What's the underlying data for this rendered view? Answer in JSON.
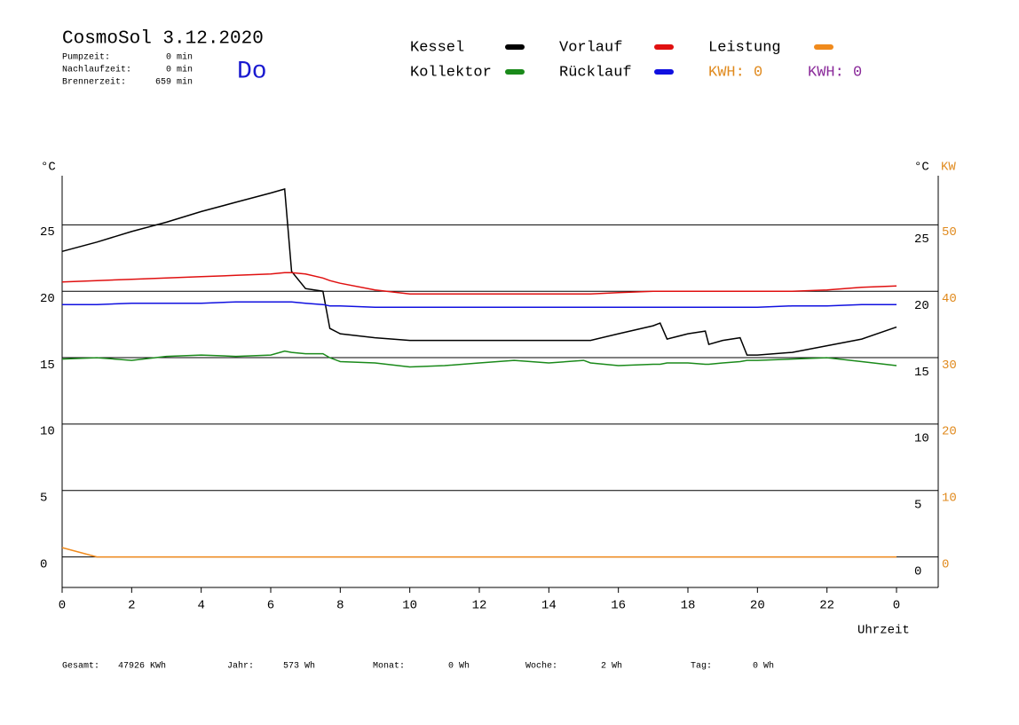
{
  "chart_data": {
    "type": "line",
    "title": "CosmoSol 3.12.2020",
    "day": "Do",
    "info": [
      {
        "label": "Pumpzeit:",
        "value": "0 min"
      },
      {
        "label": "Nachlaufzeit:",
        "value": "0 min"
      },
      {
        "label": "Brennerzeit:",
        "value": "659 min"
      }
    ],
    "y_unit": "°C",
    "y2_unit": "KW",
    "x_label": "Uhrzeit",
    "x": [
      0,
      1,
      2,
      3,
      4,
      5,
      6,
      6.4,
      6.6,
      7,
      7.5,
      7.7,
      8,
      9,
      10,
      11,
      12,
      13,
      14,
      15,
      15.2,
      16,
      17,
      17.2,
      17.4,
      18,
      18.5,
      18.6,
      19,
      19.5,
      19.7,
      20,
      21,
      22,
      23,
      24
    ],
    "xlim": [
      0,
      25.2
    ],
    "xticks": [
      0,
      2,
      4,
      6,
      8,
      10,
      12,
      14,
      16,
      18,
      20,
      22,
      {
        "value": 24,
        "label": "0"
      }
    ],
    "ylim": [
      -2.3,
      28.7
    ],
    "yticks": [
      0,
      5,
      10,
      15,
      20,
      25
    ],
    "y2lim": [
      -4.6,
      57.4
    ],
    "y2ticks": [
      0,
      10,
      20,
      30,
      40,
      50
    ],
    "grid": true,
    "series": [
      {
        "name": "Kessel",
        "color": "#000000",
        "values": [
          23.0,
          23.7,
          24.5,
          25.2,
          26.0,
          26.7,
          27.4,
          27.7,
          21.5,
          20.2,
          20.0,
          17.2,
          16.8,
          16.5,
          16.3,
          16.3,
          16.3,
          16.3,
          16.3,
          16.3,
          16.3,
          16.8,
          17.4,
          17.6,
          16.4,
          16.8,
          17.0,
          16.0,
          16.3,
          16.5,
          15.2,
          15.2,
          15.4,
          15.9,
          16.4,
          17.3
        ]
      },
      {
        "name": "Vorlauf",
        "color": "#e01010",
        "values": [
          20.7,
          20.8,
          20.9,
          21.0,
          21.1,
          21.2,
          21.3,
          21.4,
          21.4,
          21.3,
          21.0,
          20.8,
          20.6,
          20.1,
          19.8,
          19.8,
          19.8,
          19.8,
          19.8,
          19.8,
          19.8,
          19.9,
          20.0,
          20.0,
          20.0,
          20.0,
          20.0,
          20.0,
          20.0,
          20.0,
          20.0,
          20.0,
          20.0,
          20.1,
          20.3,
          20.4
        ]
      },
      {
        "name": "Leistung",
        "color": "#f08a1c",
        "axis": "y2",
        "values": [
          1.4,
          0,
          0,
          0,
          0,
          0,
          0,
          0,
          0,
          0,
          0,
          0,
          0,
          0,
          0,
          0,
          0,
          0,
          0,
          0,
          0,
          0,
          0,
          0,
          0,
          0,
          0,
          0,
          0,
          0,
          0,
          0,
          0,
          0,
          0,
          0
        ]
      },
      {
        "name": "Kollektor",
        "color": "#1a8a1a",
        "values": [
          14.9,
          15.0,
          14.8,
          15.1,
          15.2,
          15.1,
          15.2,
          15.5,
          15.4,
          15.3,
          15.3,
          15.0,
          14.7,
          14.6,
          14.3,
          14.4,
          14.6,
          14.8,
          14.6,
          14.8,
          14.6,
          14.4,
          14.5,
          14.5,
          14.6,
          14.6,
          14.5,
          14.5,
          14.6,
          14.7,
          14.8,
          14.8,
          14.9,
          15.0,
          14.7,
          14.4
        ]
      },
      {
        "name": "Rücklauf",
        "color": "#1010e0",
        "values": [
          19.0,
          19.0,
          19.1,
          19.1,
          19.1,
          19.2,
          19.2,
          19.2,
          19.2,
          19.1,
          19.0,
          18.9,
          18.9,
          18.8,
          18.8,
          18.8,
          18.8,
          18.8,
          18.8,
          18.8,
          18.8,
          18.8,
          18.8,
          18.8,
          18.8,
          18.8,
          18.8,
          18.8,
          18.8,
          18.8,
          18.8,
          18.8,
          18.9,
          18.9,
          19.0,
          19.0
        ]
      }
    ],
    "kwh_labels": [
      {
        "text": "KWH: 0",
        "color": "#e08a1e"
      },
      {
        "text": "KWH: 0",
        "color": "#8a2a9a"
      }
    ],
    "totals": [
      {
        "label": "Gesamt:",
        "value": "47926 KWh"
      },
      {
        "label": "Jahr:",
        "value": "573 Wh"
      },
      {
        "label": "Monat:",
        "value": "0 Wh"
      },
      {
        "label": "Woche:",
        "value": "2 Wh"
      },
      {
        "label": "Tag:",
        "value": "0 Wh"
      }
    ]
  }
}
